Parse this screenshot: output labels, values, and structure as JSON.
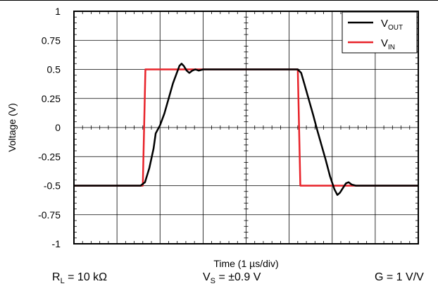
{
  "chart_data": {
    "type": "line",
    "xlabel": "Time (1 µs/div)",
    "ylabel": "Voltage (V)",
    "yticks": [
      "1",
      "0.75",
      "0.5",
      "0.25",
      "0",
      "-0.25",
      "-0.5",
      "-0.75",
      "-1"
    ],
    "ylim": [
      -1,
      1
    ],
    "xlim": [
      0,
      8
    ],
    "x_divisions": 8,
    "y_divisions": 8,
    "grid": true,
    "legend_position": "top-right",
    "series": [
      {
        "name": "V_OUT",
        "color": "#000000",
        "points": [
          [
            0,
            -0.5
          ],
          [
            1.55,
            -0.5
          ],
          [
            1.65,
            -0.47
          ],
          [
            1.75,
            -0.35
          ],
          [
            1.85,
            -0.18
          ],
          [
            1.9,
            -0.05
          ],
          [
            2.0,
            0.02
          ],
          [
            2.1,
            0.12
          ],
          [
            2.2,
            0.25
          ],
          [
            2.3,
            0.38
          ],
          [
            2.4,
            0.48
          ],
          [
            2.45,
            0.53
          ],
          [
            2.5,
            0.55
          ],
          [
            2.55,
            0.53
          ],
          [
            2.62,
            0.49
          ],
          [
            2.68,
            0.47
          ],
          [
            2.75,
            0.49
          ],
          [
            2.82,
            0.5
          ],
          [
            2.9,
            0.49
          ],
          [
            3.0,
            0.5
          ],
          [
            5.2,
            0.5
          ],
          [
            5.28,
            0.47
          ],
          [
            5.35,
            0.38
          ],
          [
            5.45,
            0.25
          ],
          [
            5.55,
            0.12
          ],
          [
            5.65,
            -0.02
          ],
          [
            5.75,
            -0.15
          ],
          [
            5.85,
            -0.28
          ],
          [
            5.95,
            -0.42
          ],
          [
            6.05,
            -0.53
          ],
          [
            6.12,
            -0.58
          ],
          [
            6.18,
            -0.56
          ],
          [
            6.25,
            -0.52
          ],
          [
            6.32,
            -0.48
          ],
          [
            6.38,
            -0.47
          ],
          [
            6.45,
            -0.49
          ],
          [
            6.55,
            -0.5
          ],
          [
            8,
            -0.5
          ]
        ]
      },
      {
        "name": "V_IN",
        "color": "#e8232a",
        "points": [
          [
            0,
            -0.5
          ],
          [
            1.6,
            -0.5
          ],
          [
            1.66,
            0.5
          ],
          [
            5.2,
            0.5
          ],
          [
            5.26,
            -0.5
          ],
          [
            8,
            -0.5
          ]
        ]
      }
    ]
  },
  "legend": {
    "items": [
      {
        "main": "V",
        "sub": "OUT"
      },
      {
        "main": "V",
        "sub": "IN"
      }
    ]
  },
  "conditions": {
    "rl": {
      "main": "R",
      "sub": "L",
      "rest": " = 10 kΩ"
    },
    "vs": {
      "main": "V",
      "sub": "S",
      "rest": " = ±0.9 V"
    },
    "g": "G = 1 V/V"
  }
}
